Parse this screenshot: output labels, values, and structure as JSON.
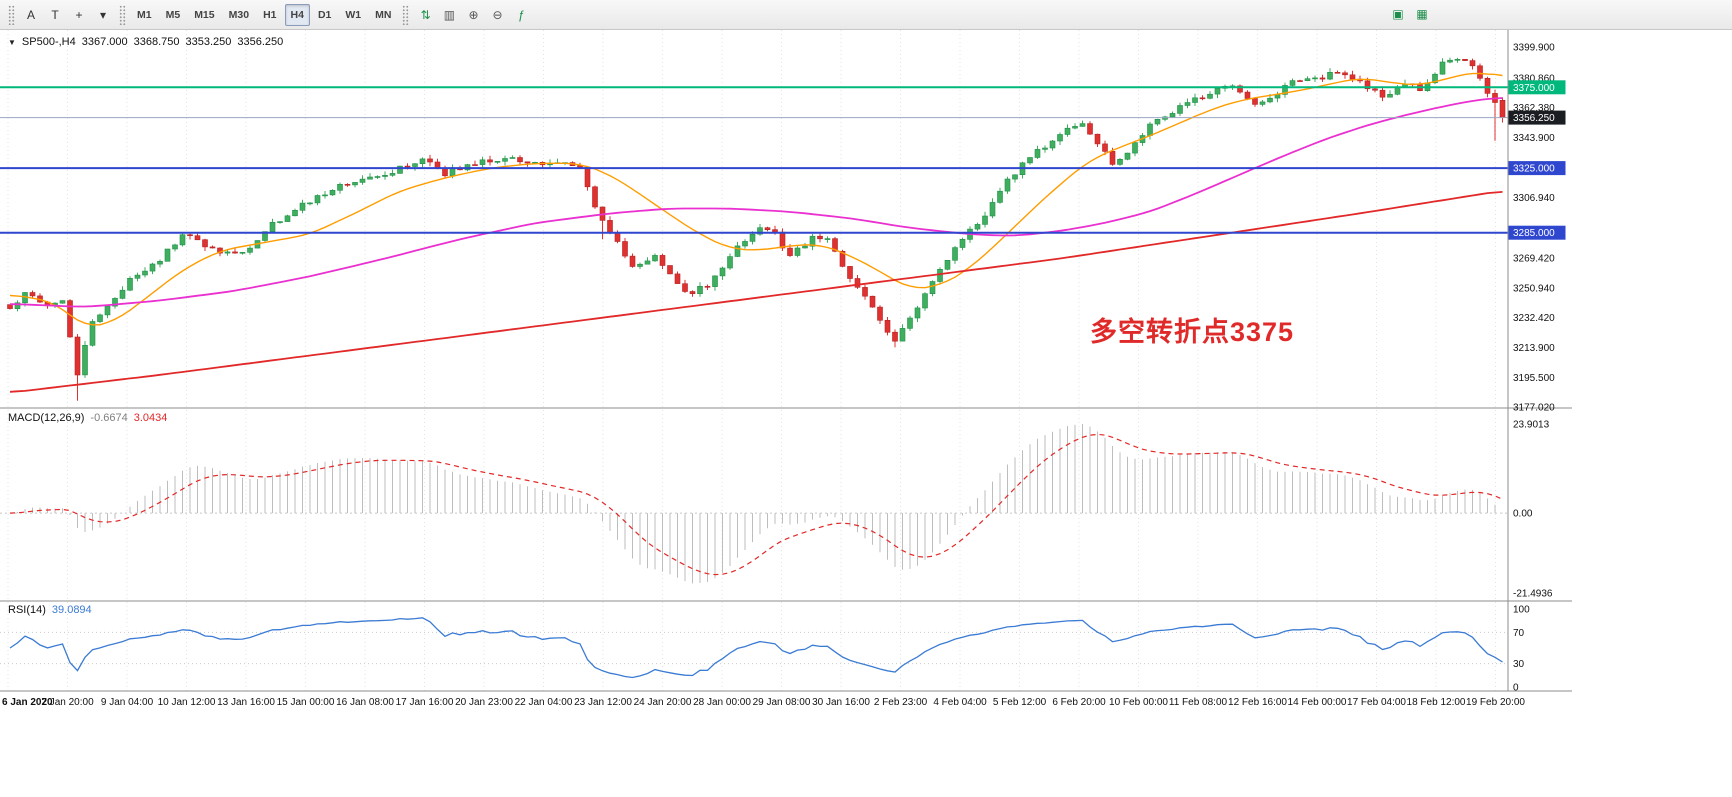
{
  "toolbar": {
    "tool_buttons": [
      {
        "name": "text-label-tool-button",
        "glyph": "A",
        "color": "#333333"
      },
      {
        "name": "text-tool-button",
        "glyph": "T",
        "color": "#333333"
      },
      {
        "name": "crosshair-tool-button",
        "glyph": "+",
        "color": "#333333"
      },
      {
        "name": "drawing-tools-dropdown",
        "glyph": "▾",
        "color": "#333333"
      }
    ],
    "timeframes": [
      "M1",
      "M5",
      "M15",
      "M30",
      "H1",
      "H4",
      "D1",
      "W1",
      "MN"
    ],
    "active_timeframe": "H4",
    "chart_buttons": [
      {
        "name": "new-order-button",
        "glyph": "⇅",
        "color": "#1b8f4a"
      },
      {
        "name": "chart-type-candles-button",
        "glyph": "▥",
        "color": "#555555"
      },
      {
        "name": "zoom-in-button",
        "glyph": "⊕",
        "color": "#555555"
      },
      {
        "name": "zoom-out-button",
        "glyph": "⊖",
        "color": "#555555"
      },
      {
        "name": "indicators-button",
        "glyph": "ƒ",
        "color": "#1b8f4a"
      }
    ],
    "window_buttons": [
      {
        "name": "tile-windows-button",
        "glyph": "▣",
        "color": "#1b8f4a"
      },
      {
        "name": "cascade-windows-button",
        "glyph": "▦",
        "color": "#1b8f4a"
      }
    ]
  },
  "chart": {
    "header": {
      "symbol": "SP500-,H4",
      "open": "3367.000",
      "high": "3368.750",
      "low": "3353.250",
      "close": "3356.250"
    },
    "annotation": {
      "text": "多空转折点3375",
      "color": "#e02a2a"
    },
    "price_axis": {
      "ticks": [
        {
          "label": "3399.900",
          "value": 3399.9
        },
        {
          "label": "3380.860",
          "value": 3380.86
        },
        {
          "label": "3362.380",
          "value": 3362.38
        },
        {
          "label": "3343.900",
          "value": 3343.9
        },
        {
          "label": "3306.940",
          "value": 3306.94
        },
        {
          "label": "3269.420",
          "value": 3269.42
        },
        {
          "label": "3250.940",
          "value": 3250.94
        },
        {
          "label": "3232.420",
          "value": 3232.42
        },
        {
          "label": "3213.900",
          "value": 3213.9
        },
        {
          "label": "3195.500",
          "value": 3195.5
        },
        {
          "label": "3177.020",
          "value": 3177.02
        }
      ],
      "badges": [
        {
          "label": "3375.000",
          "value": 3375.0,
          "color": "#00b87c"
        },
        {
          "label": "3356.250",
          "value": 3356.25,
          "color": "#1a1d22"
        },
        {
          "label": "3325.000",
          "value": 3325.0,
          "color": "#2f46cf"
        },
        {
          "label": "3285.000",
          "value": 3285.0,
          "color": "#2f46cf"
        }
      ]
    },
    "hlines": [
      {
        "value": 3375.0,
        "color": "#00b87c",
        "width": 2
      },
      {
        "value": 3325.0,
        "color": "#2f46cf",
        "width": 2
      },
      {
        "value": 3285.0,
        "color": "#2f46cf",
        "width": 2
      }
    ],
    "price_line": {
      "value": 3356.25,
      "color": "#9aa6c4"
    }
  },
  "macd": {
    "label": "MACD(12,26,9)",
    "main_value": "-0.6674",
    "signal_value": "3.0434",
    "axis": [
      {
        "label": "23.9013",
        "value": 23.9013
      },
      {
        "label": "0.00",
        "value": 0
      },
      {
        "label": "-21.4936",
        "value": -21.4936
      }
    ]
  },
  "rsi": {
    "label": "RSI(14)",
    "value": "39.0894",
    "axis": [
      {
        "label": "100",
        "value": 100
      },
      {
        "label": "70",
        "value": 70
      },
      {
        "label": "30",
        "value": 30
      },
      {
        "label": "0",
        "value": 0
      }
    ],
    "levels": [
      70,
      30
    ]
  },
  "time_axis": [
    "6 Jan 2020",
    "7 Jan 20:00",
    "9 Jan 04:00",
    "10 Jan 12:00",
    "13 Jan 16:00",
    "15 Jan 00:00",
    "16 Jan 08:00",
    "17 Jan 16:00",
    "20 Jan 23:00",
    "22 Jan 04:00",
    "23 Jan 12:00",
    "24 Jan 20:00",
    "28 Jan 00:00",
    "29 Jan 08:00",
    "30 Jan 16:00",
    "2 Feb 23:00",
    "4 Feb 04:00",
    "5 Feb 12:00",
    "6 Feb 20:00",
    "10 Feb 00:00",
    "11 Feb 08:00",
    "12 Feb 16:00",
    "14 Feb 00:00",
    "17 Feb 04:00",
    "18 Feb 12:00",
    "19 Feb 20:00"
  ],
  "chart_data": {
    "type": "candlestick",
    "symbol": "SP500-",
    "timeframe": "H4",
    "bars": 200,
    "price_range": [
      3176.5,
      3410.5
    ],
    "up_color": "#3fae5f",
    "down_color": "#e03131",
    "up_border": "#1f8f47",
    "down_border": "#b32222",
    "last_bar": {
      "open": 3367.0,
      "high": 3368.75,
      "low": 3353.25,
      "close": 3356.25
    },
    "close_path_anchors": [
      [
        0,
        3238
      ],
      [
        2,
        3248
      ],
      [
        5,
        3240
      ],
      [
        7,
        3243
      ],
      [
        9,
        3198
      ],
      [
        11,
        3230
      ],
      [
        14,
        3244
      ],
      [
        16,
        3256
      ],
      [
        20,
        3268
      ],
      [
        23,
        3284
      ],
      [
        27,
        3274
      ],
      [
        31,
        3272
      ],
      [
        35,
        3290
      ],
      [
        39,
        3302
      ],
      [
        43,
        3312
      ],
      [
        47,
        3318
      ],
      [
        51,
        3323
      ],
      [
        55,
        3330
      ],
      [
        58,
        3322
      ],
      [
        62,
        3328
      ],
      [
        66,
        3332
      ],
      [
        70,
        3327
      ],
      [
        73,
        3330
      ],
      [
        76,
        3324
      ],
      [
        79,
        3292
      ],
      [
        83,
        3265
      ],
      [
        86,
        3271
      ],
      [
        90,
        3247
      ],
      [
        93,
        3253
      ],
      [
        97,
        3276
      ],
      [
        100,
        3288
      ],
      [
        102,
        3284
      ],
      [
        104,
        3270
      ],
      [
        107,
        3282
      ],
      [
        109,
        3280
      ],
      [
        112,
        3257
      ],
      [
        115,
        3238
      ],
      [
        118,
        3218
      ],
      [
        121,
        3240
      ],
      [
        124,
        3262
      ],
      [
        127,
        3281
      ],
      [
        130,
        3295
      ],
      [
        133,
        3318
      ],
      [
        136,
        3332
      ],
      [
        140,
        3346
      ],
      [
        143,
        3352
      ],
      [
        145,
        3340
      ],
      [
        147,
        3328
      ],
      [
        149,
        3334
      ],
      [
        152,
        3352
      ],
      [
        156,
        3363
      ],
      [
        159,
        3370
      ],
      [
        163,
        3377
      ],
      [
        166,
        3364
      ],
      [
        169,
        3372
      ],
      [
        171,
        3378
      ],
      [
        175,
        3381
      ],
      [
        177,
        3385
      ],
      [
        179,
        3380
      ],
      [
        183,
        3370
      ],
      [
        186,
        3377
      ],
      [
        188,
        3374
      ],
      [
        191,
        3390
      ],
      [
        193,
        3393
      ],
      [
        195,
        3387
      ],
      [
        197,
        3372
      ],
      [
        199,
        3357
      ]
    ],
    "wick_lows": [
      [
        9,
        3181
      ],
      [
        79,
        3281
      ],
      [
        118,
        3214
      ],
      [
        198,
        3342
      ]
    ],
    "ma_lines": [
      {
        "name": "ma-fast-orange",
        "color": "#ff9d00",
        "width": 1.4,
        "anchors": [
          [
            0,
            3247
          ],
          [
            6,
            3242
          ],
          [
            10,
            3226
          ],
          [
            14,
            3230
          ],
          [
            18,
            3244
          ],
          [
            23,
            3262
          ],
          [
            28,
            3274
          ],
          [
            34,
            3279
          ],
          [
            40,
            3284
          ],
          [
            46,
            3297
          ],
          [
            52,
            3311
          ],
          [
            58,
            3319
          ],
          [
            64,
            3325
          ],
          [
            70,
            3328
          ],
          [
            76,
            3328
          ],
          [
            80,
            3321
          ],
          [
            84,
            3309
          ],
          [
            88,
            3296
          ],
          [
            92,
            3284
          ],
          [
            96,
            3275
          ],
          [
            100,
            3274
          ],
          [
            104,
            3277
          ],
          [
            108,
            3278
          ],
          [
            112,
            3271
          ],
          [
            116,
            3261
          ],
          [
            120,
            3250
          ],
          [
            124,
            3252
          ],
          [
            128,
            3263
          ],
          [
            132,
            3280
          ],
          [
            136,
            3298
          ],
          [
            140,
            3315
          ],
          [
            144,
            3330
          ],
          [
            148,
            3338
          ],
          [
            152,
            3345
          ],
          [
            156,
            3353
          ],
          [
            160,
            3361
          ],
          [
            164,
            3367
          ],
          [
            168,
            3370
          ],
          [
            172,
            3373
          ],
          [
            176,
            3377
          ],
          [
            180,
            3381
          ],
          [
            184,
            3378
          ],
          [
            188,
            3376
          ],
          [
            192,
            3381
          ],
          [
            196,
            3385
          ],
          [
            199,
            3381
          ]
        ]
      },
      {
        "name": "ma-mid-magenta",
        "color": "#ea30d0",
        "width": 1.8,
        "anchors": [
          [
            0,
            3241
          ],
          [
            10,
            3239
          ],
          [
            20,
            3243
          ],
          [
            30,
            3249
          ],
          [
            40,
            3258
          ],
          [
            50,
            3269
          ],
          [
            60,
            3281
          ],
          [
            70,
            3291
          ],
          [
            80,
            3297
          ],
          [
            88,
            3300
          ],
          [
            96,
            3300
          ],
          [
            104,
            3298
          ],
          [
            112,
            3294
          ],
          [
            120,
            3288
          ],
          [
            128,
            3284
          ],
          [
            134,
            3283
          ],
          [
            140,
            3286
          ],
          [
            146,
            3291
          ],
          [
            152,
            3298
          ],
          [
            158,
            3309
          ],
          [
            164,
            3321
          ],
          [
            170,
            3333
          ],
          [
            176,
            3344
          ],
          [
            182,
            3353
          ],
          [
            188,
            3360
          ],
          [
            194,
            3366
          ],
          [
            199,
            3369
          ]
        ]
      },
      {
        "name": "ma-slow-red",
        "color": "#e22828",
        "width": 1.8,
        "anchors": [
          [
            0,
            3186
          ],
          [
            20,
            3197
          ],
          [
            40,
            3209
          ],
          [
            60,
            3221
          ],
          [
            80,
            3233
          ],
          [
            100,
            3245
          ],
          [
            120,
            3257
          ],
          [
            140,
            3269
          ],
          [
            160,
            3283
          ],
          [
            180,
            3297
          ],
          [
            199,
            3311
          ]
        ]
      }
    ],
    "indicators": {
      "macd": {
        "fast": 12,
        "slow": 26,
        "signal": 9,
        "scale_max": 23.9013,
        "histogram_color": "#bdbdbd",
        "signal_color": "#e22828"
      },
      "rsi": {
        "period": 14,
        "line_color": "#3b7bd4"
      }
    }
  }
}
